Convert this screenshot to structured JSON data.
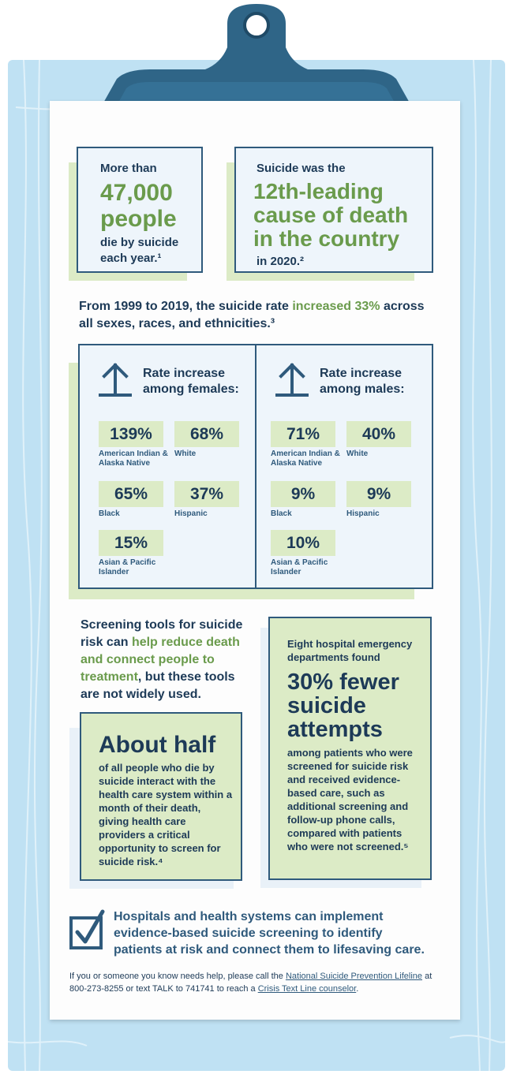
{
  "stat1": {
    "pre": "More than",
    "big": "47,000 people",
    "post": "die by suicide each year.¹"
  },
  "stat2": {
    "pre": "Suicide was the",
    "big": "12th-leading cause of death in the country",
    "post": "in 2020.²"
  },
  "trend": {
    "pre": "From 1999 to 2019, the suicide rate ",
    "highlight": "increased 33%",
    "post": " across all sexes, races, and ethnicities.³"
  },
  "rates": {
    "females": {
      "heading": "Rate increase among females:",
      "items": [
        {
          "value": "139%",
          "label": "American Indian & Alaska Native"
        },
        {
          "value": "68%",
          "label": "White"
        },
        {
          "value": "65%",
          "label": "Black"
        },
        {
          "value": "37%",
          "label": "Hispanic"
        },
        {
          "value": "15%",
          "label": "Asian & Pacific Islander"
        }
      ]
    },
    "males": {
      "heading": "Rate increase among males:",
      "items": [
        {
          "value": "71%",
          "label": "American Indian & Alaska Native"
        },
        {
          "value": "40%",
          "label": "White"
        },
        {
          "value": "9%",
          "label": "Black"
        },
        {
          "value": "9%",
          "label": "Hispanic"
        },
        {
          "value": "10%",
          "label": "Asian & Pacific Islander"
        }
      ]
    }
  },
  "screening": {
    "pre": "Screening tools for suicide risk can ",
    "highlight": "help reduce death and connect people to treatment",
    "post": ", but these tools are not widely used."
  },
  "ed": {
    "pre": "Eight hospital emergency departments found",
    "big": "30% fewer suicide attempts",
    "body": "among patients who were screened for suicide risk and received evidence-based care, such as additional screening and follow-up phone calls, compared with patients who were not screened.⁵"
  },
  "half": {
    "big": "About half",
    "body": "of all people who die by suicide interact with the health care system within a month of their death, giving health care providers a critical opportunity to screen for suicide risk.⁴"
  },
  "cta": "Hospitals and health systems can implement evidence-based suicide screening to identify patients at risk and connect them to lifesaving care.",
  "help": {
    "t1": "If you or someone you know needs help, please call the ",
    "link1": "National Suicide Prevention Lifeline",
    "t2": " at 800-273-8255 or text TALK to 741741 to reach a ",
    "link2": "Crisis Text Line counselor",
    "t3": "."
  },
  "colors": {
    "navy": "#1d3a57",
    "green": "#6a9b4c",
    "light_green": "#dcebc6",
    "board_blue": "#bfe1f3",
    "clip_blue": "#2f6587"
  },
  "icons": [
    "arrow-up-icon",
    "checkbox-check-icon",
    "clipboard-clip-icon"
  ]
}
